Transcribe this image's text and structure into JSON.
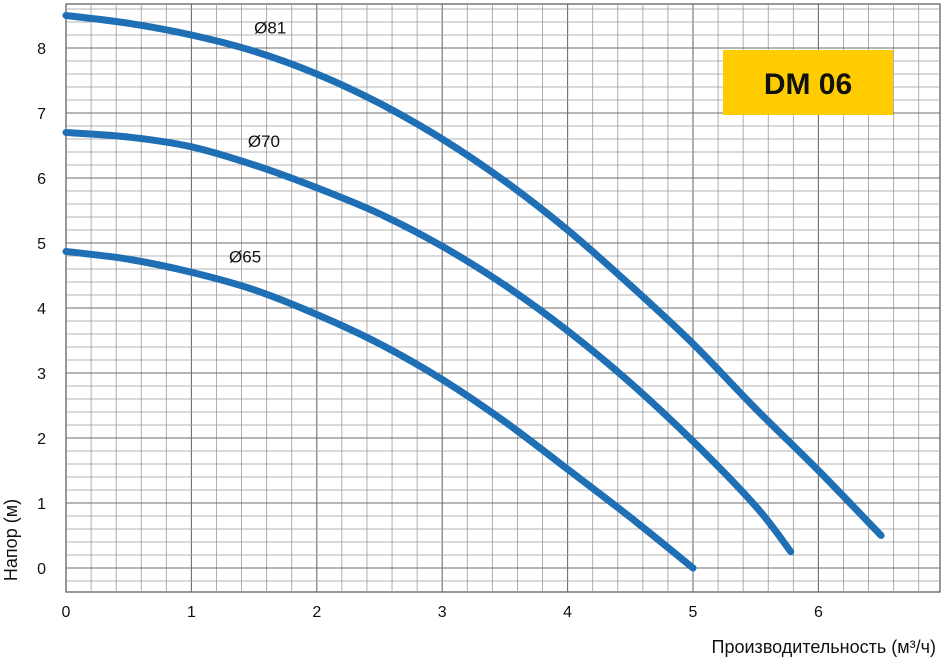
{
  "chart_data": {
    "type": "line",
    "title": "DM 06",
    "xlabel": "Производительность (м³/ч)",
    "ylabel": "Напор (м)",
    "xlim": [
      0,
      7
    ],
    "ylim": [
      -0.4,
      8.7
    ],
    "x_ticks": [
      "0",
      "1",
      "2",
      "3",
      "4",
      "5",
      "6"
    ],
    "y_ticks": [
      "0",
      "1",
      "2",
      "3",
      "4",
      "5",
      "6",
      "7",
      "8"
    ],
    "grid": true,
    "badge_color": "#ffcc00",
    "line_color": "#1f6fb5",
    "series": [
      {
        "name": "Ø81",
        "x": [
          0,
          0.5,
          1,
          1.5,
          2,
          2.5,
          3,
          3.5,
          4,
          4.5,
          5,
          5.5,
          6,
          6.5
        ],
        "y": [
          8.5,
          8.38,
          8.2,
          7.95,
          7.6,
          7.15,
          6.6,
          5.95,
          5.2,
          4.35,
          3.45,
          2.45,
          1.5,
          0.5
        ]
      },
      {
        "name": "Ø70",
        "x": [
          0,
          0.5,
          1,
          1.5,
          2,
          2.5,
          3,
          3.5,
          4,
          4.5,
          5,
          5.5,
          5.78
        ],
        "y": [
          6.7,
          6.63,
          6.48,
          6.2,
          5.85,
          5.45,
          4.95,
          4.35,
          3.65,
          2.85,
          1.95,
          0.95,
          0.25
        ]
      },
      {
        "name": "Ø65",
        "x": [
          0,
          0.5,
          1,
          1.5,
          2,
          2.5,
          3,
          3.5,
          4,
          4.5,
          5
        ],
        "y": [
          4.87,
          4.75,
          4.55,
          4.28,
          3.9,
          3.45,
          2.9,
          2.25,
          1.52,
          0.78,
          0
        ]
      }
    ]
  }
}
